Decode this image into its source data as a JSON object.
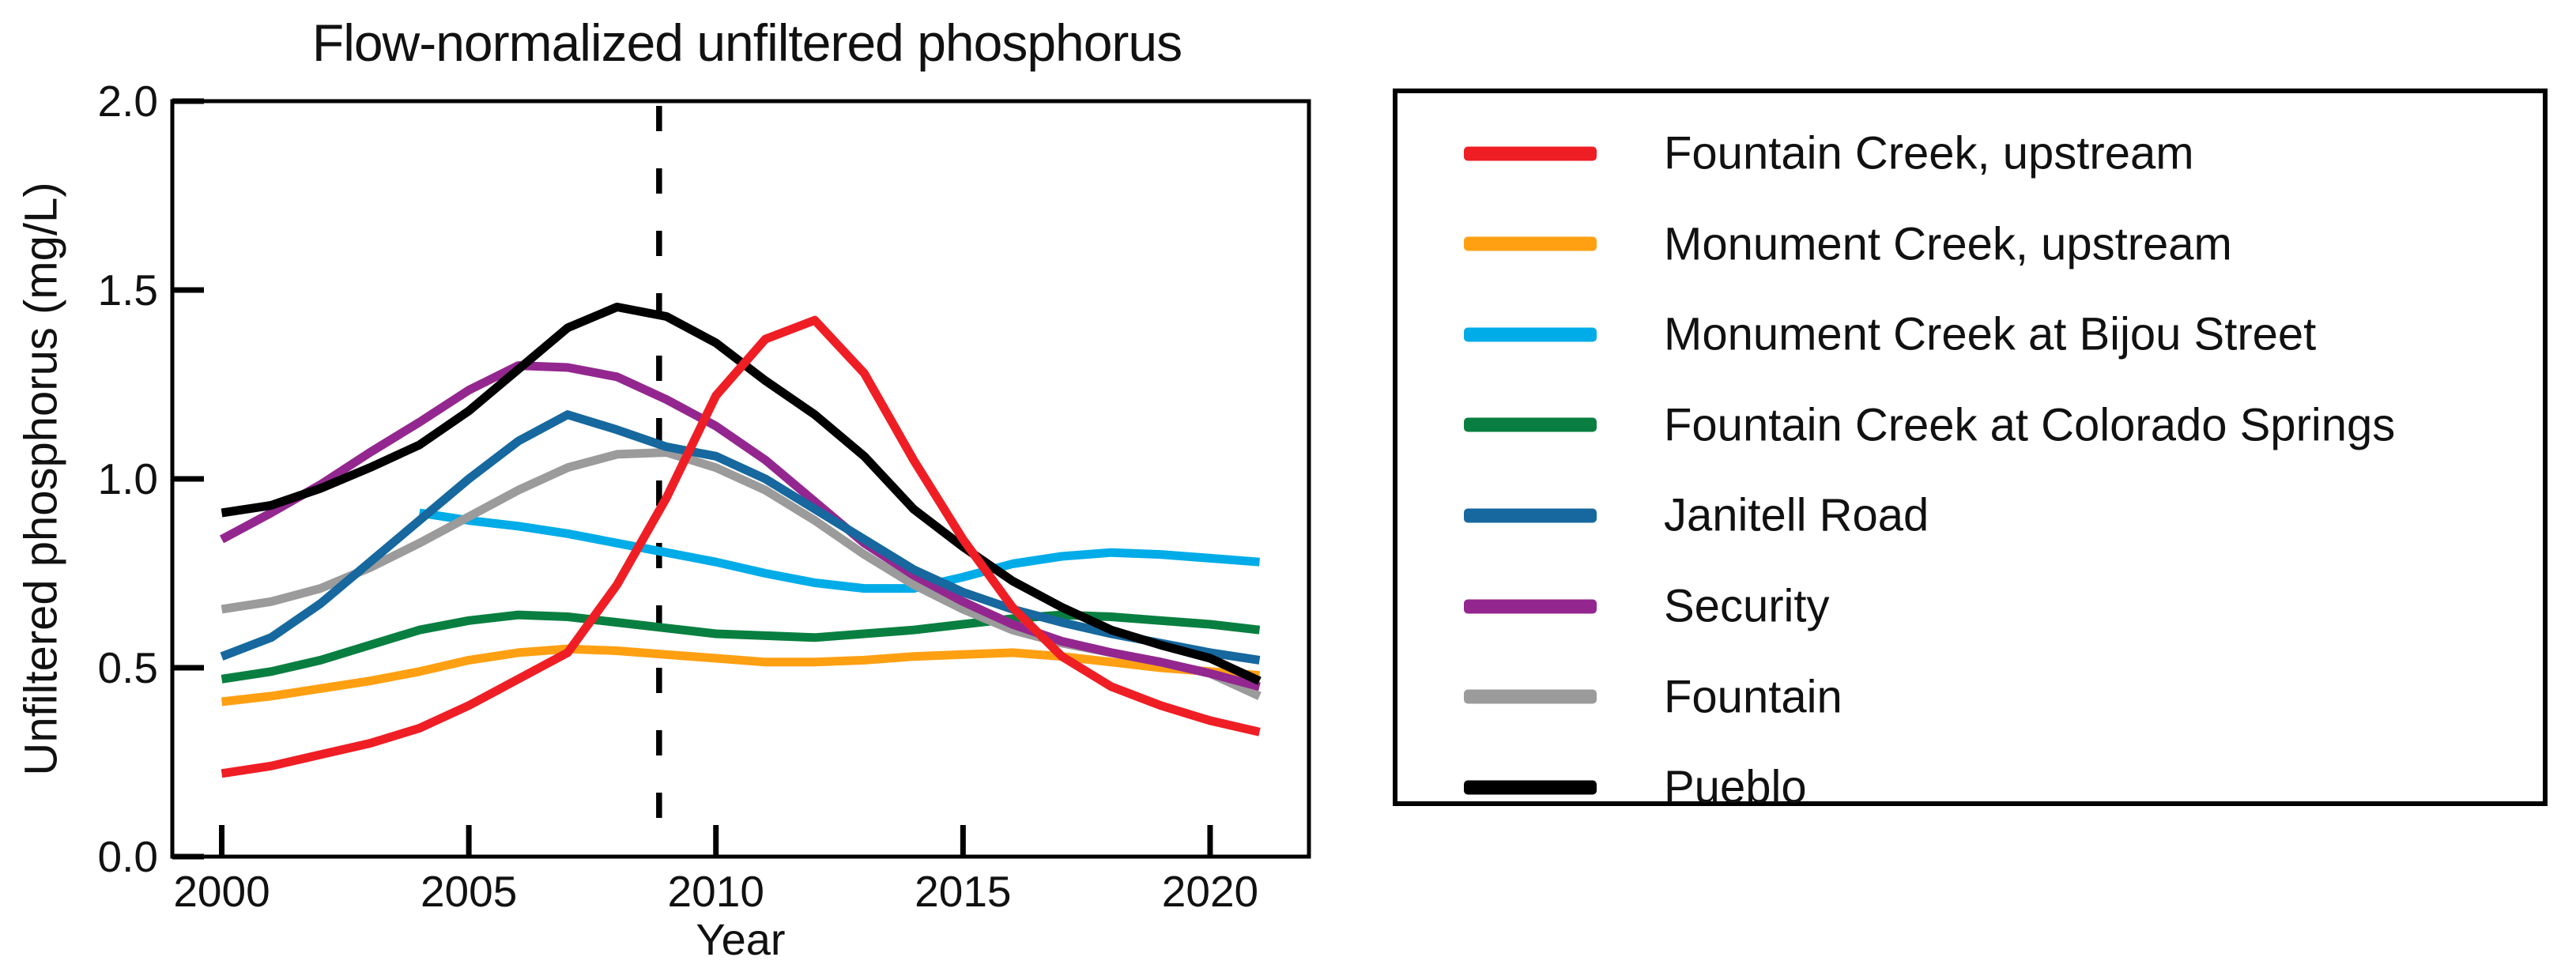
{
  "chart_data": {
    "type": "line",
    "title": "Flow-normalized unfiltered phosphorus",
    "xlabel": "Year",
    "ylabel": "Unfiltered phosphorus (mg/L)",
    "xlim": [
      1999,
      2022
    ],
    "ylim": [
      0.0,
      2.0
    ],
    "xticks": [
      2000,
      2005,
      2010,
      2015,
      2020
    ],
    "xtick_labels": [
      "2000",
      "2005",
      "2010",
      "2015",
      "2020"
    ],
    "ytick_labels": [
      "0.0",
      "0.5",
      "1.0",
      "1.5",
      "2.0"
    ],
    "grid": false,
    "legend_position": "right-outside",
    "vline": {
      "x": 2008.85,
      "style": "dashed",
      "color": "#000000"
    },
    "series": [
      {
        "name": "Fountain Creek, upstream",
        "color": "#EF1E25",
        "z": 8,
        "x": [
          2000,
          2001,
          2002,
          2003,
          2004,
          2005,
          2006,
          2007,
          2008,
          2009,
          2010,
          2011,
          2012,
          2013,
          2014,
          2015,
          2016,
          2017,
          2018,
          2019,
          2020,
          2021
        ],
        "y": [
          0.22,
          0.24,
          0.27,
          0.3,
          0.34,
          0.4,
          0.47,
          0.54,
          0.72,
          0.95,
          1.22,
          1.37,
          1.42,
          1.28,
          1.05,
          0.84,
          0.66,
          0.53,
          0.45,
          0.4,
          0.36,
          0.33
        ]
      },
      {
        "name": "Monument Creek, upstream",
        "color": "#FFA012",
        "z": 2,
        "x": [
          2000,
          2001,
          2002,
          2003,
          2004,
          2005,
          2006,
          2007,
          2008,
          2009,
          2010,
          2011,
          2012,
          2013,
          2014,
          2015,
          2016,
          2017,
          2018,
          2019,
          2020,
          2021
        ],
        "y": [
          0.41,
          0.425,
          0.445,
          0.465,
          0.49,
          0.52,
          0.54,
          0.55,
          0.545,
          0.535,
          0.525,
          0.515,
          0.515,
          0.52,
          0.53,
          0.535,
          0.54,
          0.53,
          0.515,
          0.5,
          0.49,
          0.48
        ]
      },
      {
        "name": "Monument Creek at Bijou Street",
        "color": "#00ACE8",
        "z": 1,
        "x": [
          2004,
          2005,
          2006,
          2007,
          2008,
          2009,
          2010,
          2011,
          2012,
          2013,
          2014,
          2015,
          2016,
          2017,
          2018,
          2019,
          2020,
          2021
        ],
        "y": [
          0.91,
          0.89,
          0.875,
          0.855,
          0.83,
          0.805,
          0.78,
          0.75,
          0.725,
          0.71,
          0.71,
          0.74,
          0.775,
          0.795,
          0.805,
          0.8,
          0.79,
          0.78
        ]
      },
      {
        "name": "Fountain Creek at Colorado Springs",
        "color": "#087F40",
        "z": 3,
        "x": [
          2000,
          2001,
          2002,
          2003,
          2004,
          2005,
          2006,
          2007,
          2008,
          2009,
          2010,
          2011,
          2012,
          2013,
          2014,
          2015,
          2016,
          2017,
          2018,
          2019,
          2020,
          2021
        ],
        "y": [
          0.47,
          0.49,
          0.52,
          0.56,
          0.6,
          0.625,
          0.64,
          0.635,
          0.62,
          0.605,
          0.59,
          0.585,
          0.58,
          0.59,
          0.6,
          0.615,
          0.63,
          0.64,
          0.635,
          0.625,
          0.615,
          0.6
        ]
      },
      {
        "name": "Janitell Road",
        "color": "#16689E",
        "z": 6,
        "x": [
          2000,
          2001,
          2002,
          2003,
          2004,
          2005,
          2006,
          2007,
          2008,
          2009,
          2010,
          2011,
          2012,
          2013,
          2014,
          2015,
          2016,
          2017,
          2018,
          2019,
          2020,
          2021
        ],
        "y": [
          0.53,
          0.58,
          0.67,
          0.78,
          0.89,
          1.0,
          1.1,
          1.17,
          1.13,
          1.085,
          1.06,
          1.0,
          0.92,
          0.84,
          0.76,
          0.7,
          0.655,
          0.62,
          0.59,
          0.565,
          0.54,
          0.52
        ]
      },
      {
        "name": "Security",
        "color": "#93278F",
        "z": 5,
        "x": [
          2000,
          2001,
          2002,
          2003,
          2004,
          2005,
          2006,
          2007,
          2008,
          2009,
          2010,
          2011,
          2012,
          2013,
          2014,
          2015,
          2016,
          2017,
          2018,
          2019,
          2020,
          2021
        ],
        "y": [
          0.84,
          0.91,
          0.985,
          1.07,
          1.15,
          1.235,
          1.3,
          1.295,
          1.27,
          1.21,
          1.14,
          1.05,
          0.94,
          0.83,
          0.745,
          0.675,
          0.615,
          0.57,
          0.54,
          0.515,
          0.485,
          0.45
        ]
      },
      {
        "name": "Fountain",
        "color": "#9B9B9B",
        "z": 4,
        "x": [
          2000,
          2001,
          2002,
          2003,
          2004,
          2005,
          2006,
          2007,
          2008,
          2009,
          2010,
          2011,
          2012,
          2013,
          2014,
          2015,
          2016,
          2017,
          2018,
          2019,
          2020,
          2021
        ],
        "y": [
          0.655,
          0.675,
          0.71,
          0.765,
          0.83,
          0.9,
          0.97,
          1.03,
          1.065,
          1.07,
          1.03,
          0.97,
          0.89,
          0.8,
          0.72,
          0.655,
          0.6,
          0.565,
          0.54,
          0.515,
          0.485,
          0.425
        ]
      },
      {
        "name": "Pueblo",
        "color": "#000000",
        "z": 7,
        "x": [
          2000,
          2001,
          2002,
          2003,
          2004,
          2005,
          2006,
          2007,
          2008,
          2009,
          2010,
          2011,
          2012,
          2013,
          2014,
          2015,
          2016,
          2017,
          2018,
          2019,
          2020,
          2021
        ],
        "y": [
          0.91,
          0.93,
          0.975,
          1.03,
          1.09,
          1.18,
          1.29,
          1.4,
          1.455,
          1.43,
          1.36,
          1.26,
          1.17,
          1.06,
          0.92,
          0.82,
          0.73,
          0.66,
          0.6,
          0.56,
          0.525,
          0.465
        ]
      }
    ]
  }
}
